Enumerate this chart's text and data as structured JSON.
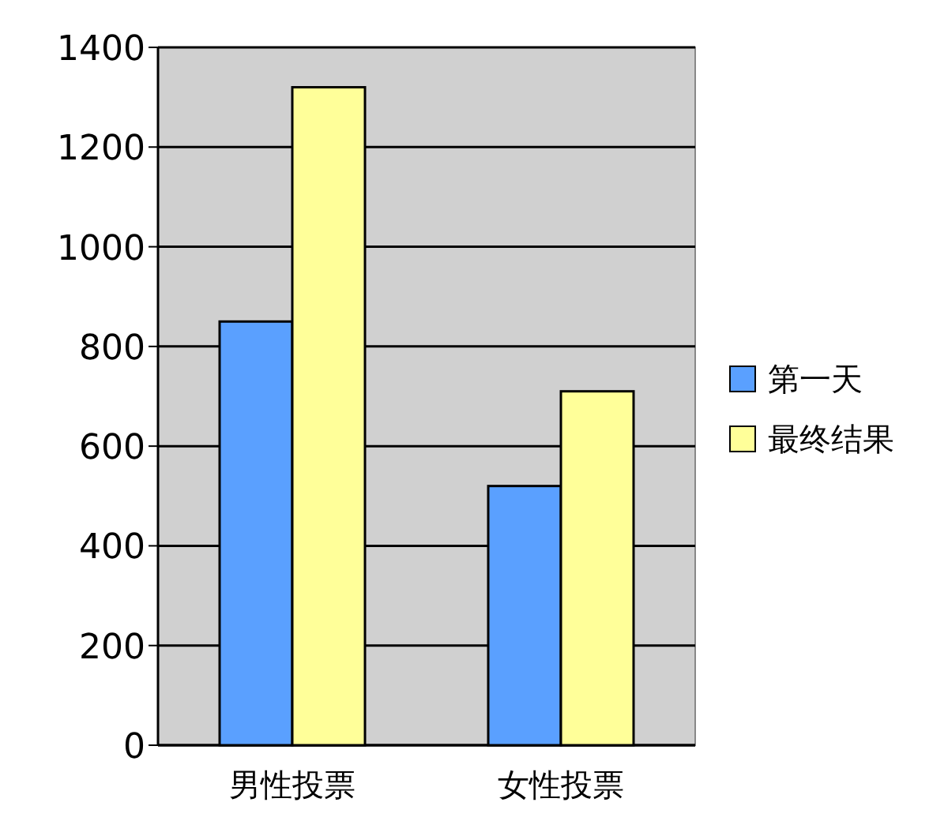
{
  "chart_data": {
    "type": "bar",
    "categories": [
      "男性投票",
      "女性投票"
    ],
    "series": [
      {
        "name": "第一天",
        "color": "#5aa0ff",
        "values": [
          850,
          520
        ]
      },
      {
        "name": "最终结果",
        "color": "#ffff99",
        "values": [
          1320,
          710
        ]
      }
    ],
    "ylim": [
      0,
      1400
    ],
    "yticks": [
      0,
      200,
      400,
      600,
      800,
      1000,
      1200,
      1400
    ],
    "grid": "y",
    "legend": "right"
  }
}
